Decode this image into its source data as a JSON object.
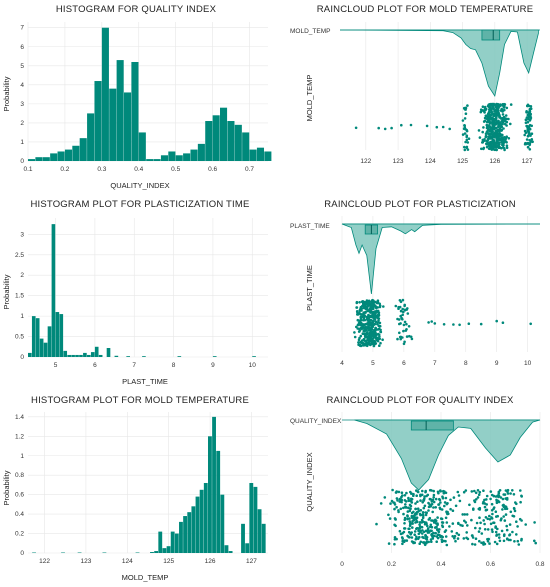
{
  "chart_data": [
    {
      "type": "bar",
      "title": "HISTOGRAM FOR QUALITY INDEX",
      "xlabel": "QUALITY_INDEX",
      "ylabel": "Probability",
      "xlim": [
        0.1,
        0.75
      ],
      "ylim": [
        0,
        7.3
      ],
      "xticks": [
        "0.1",
        "0.2",
        "0.3",
        "0.4",
        "0.5",
        "0.6",
        "0.7"
      ],
      "yticks": [
        "0",
        "1",
        "2",
        "3",
        "4",
        "5",
        "6",
        "7"
      ],
      "bins": [
        [
          0.1,
          0.12,
          0.1
        ],
        [
          0.12,
          0.14,
          0.2
        ],
        [
          0.14,
          0.16,
          0.2
        ],
        [
          0.16,
          0.18,
          0.4
        ],
        [
          0.18,
          0.2,
          0.5
        ],
        [
          0.2,
          0.22,
          0.6
        ],
        [
          0.22,
          0.24,
          0.8
        ],
        [
          0.24,
          0.26,
          1.2
        ],
        [
          0.26,
          0.28,
          2.5
        ],
        [
          0.28,
          0.3,
          4.2
        ],
        [
          0.3,
          0.32,
          7.0
        ],
        [
          0.32,
          0.34,
          3.8
        ],
        [
          0.34,
          0.36,
          5.3
        ],
        [
          0.36,
          0.38,
          3.6
        ],
        [
          0.38,
          0.4,
          5.2
        ],
        [
          0.4,
          0.42,
          1.5
        ],
        [
          0.42,
          0.44,
          0.1
        ],
        [
          0.44,
          0.46,
          0.1
        ],
        [
          0.46,
          0.48,
          0.3
        ],
        [
          0.48,
          0.5,
          0.5
        ],
        [
          0.5,
          0.52,
          0.3
        ],
        [
          0.52,
          0.54,
          0.4
        ],
        [
          0.54,
          0.56,
          0.6
        ],
        [
          0.56,
          0.58,
          0.9
        ],
        [
          0.58,
          0.6,
          2.1
        ],
        [
          0.6,
          0.62,
          2.4
        ],
        [
          0.62,
          0.64,
          2.8
        ],
        [
          0.64,
          0.66,
          2.1
        ],
        [
          0.66,
          0.68,
          1.9
        ],
        [
          0.68,
          0.7,
          1.5
        ],
        [
          0.7,
          0.72,
          0.6
        ],
        [
          0.72,
          0.74,
          0.7
        ],
        [
          0.74,
          0.76,
          0.5
        ]
      ]
    },
    {
      "type": "raincloud",
      "title": "RAINCLOUD PLOT FOR MOLD TEMPERATURE",
      "ylabel": "MOLD_TEMP",
      "category": "MOLD_TEMP",
      "xlim": [
        121.2,
        127.4
      ],
      "xticks": [
        "122",
        "123",
        "124",
        "125",
        "126",
        "127"
      ],
      "box": {
        "q1": 125.6,
        "median": 125.95,
        "q3": 126.15
      },
      "density": [
        [
          121.2,
          0
        ],
        [
          124.4,
          0.01
        ],
        [
          124.7,
          0.04
        ],
        [
          124.95,
          0.12
        ],
        [
          125.1,
          0.22
        ],
        [
          125.25,
          0.28
        ],
        [
          125.4,
          0.3
        ],
        [
          125.6,
          0.5
        ],
        [
          125.8,
          0.85
        ],
        [
          126.0,
          1.0
        ],
        [
          126.15,
          0.65
        ],
        [
          126.3,
          0.22
        ],
        [
          126.5,
          0.02
        ],
        [
          126.7,
          0.03
        ],
        [
          126.9,
          0.5
        ],
        [
          127.05,
          0.65
        ],
        [
          127.2,
          0.35
        ],
        [
          127.35,
          0.05
        ]
      ],
      "points_clusters": [
        {
          "center": 126.0,
          "spread": 0.55,
          "n": 430
        },
        {
          "center": 127.05,
          "spread": 0.18,
          "n": 70
        },
        {
          "center": 125.1,
          "spread": 0.15,
          "n": 30
        }
      ],
      "points_outliers": [
        121.7,
        122.4,
        122.6,
        122.8,
        123.1,
        123.4,
        123.9,
        124.2,
        124.4,
        124.6
      ]
    },
    {
      "type": "bar",
      "title": "HISTOGRAM PLOT FOR PLASTICIZATION TIME",
      "xlabel": "PLAST_TIME",
      "ylabel": "Probability",
      "xlim": [
        4.3,
        10.4
      ],
      "ylim": [
        0,
        3.4
      ],
      "xticks": [
        "5",
        "6",
        "7",
        "8",
        "9",
        "10"
      ],
      "yticks": [
        "0",
        "0.5",
        "1",
        "1.5",
        "2",
        "2.5",
        "3"
      ],
      "bins": [
        [
          4.3,
          4.4,
          0.1
        ],
        [
          4.4,
          4.5,
          1.0
        ],
        [
          4.5,
          4.6,
          0.95
        ],
        [
          4.6,
          4.7,
          0.45
        ],
        [
          4.7,
          4.8,
          0.35
        ],
        [
          4.8,
          4.9,
          0.75
        ],
        [
          4.9,
          5.0,
          3.25
        ],
        [
          5.0,
          5.1,
          1.1
        ],
        [
          5.1,
          5.2,
          1.05
        ],
        [
          5.2,
          5.3,
          0.15
        ],
        [
          5.3,
          5.4,
          0.05
        ],
        [
          5.4,
          5.5,
          0.05
        ],
        [
          5.5,
          5.6,
          0.05
        ],
        [
          5.6,
          5.7,
          0.05
        ],
        [
          5.7,
          5.8,
          0.1
        ],
        [
          5.8,
          5.9,
          0.05
        ],
        [
          5.9,
          6.0,
          0.12
        ],
        [
          6.0,
          6.1,
          0.25
        ],
        [
          6.1,
          6.2,
          0.05
        ],
        [
          6.3,
          6.4,
          0.22
        ],
        [
          6.5,
          6.6,
          0.03
        ],
        [
          6.8,
          6.9,
          0.02
        ],
        [
          7.2,
          7.3,
          0.02
        ],
        [
          8.1,
          8.2,
          0.02
        ],
        [
          9.0,
          9.1,
          0.02
        ],
        [
          10.0,
          10.1,
          0.02
        ]
      ]
    },
    {
      "type": "raincloud",
      "title": "RAINCLOUD PLOT FOR PLASTICIZATION",
      "ylabel": "PLAST_TIME",
      "category": "PLAST_TIME",
      "xlim": [
        4.0,
        10.4
      ],
      "xticks": [
        "4",
        "5",
        "6",
        "7",
        "8",
        "9",
        "10"
      ],
      "box": {
        "q1": 4.75,
        "median": 4.95,
        "q3": 5.15
      },
      "density": [
        [
          4.0,
          0
        ],
        [
          4.3,
          0.05
        ],
        [
          4.45,
          0.3
        ],
        [
          4.55,
          0.42
        ],
        [
          4.65,
          0.3
        ],
        [
          4.8,
          0.45
        ],
        [
          4.95,
          1.0
        ],
        [
          5.1,
          0.35
        ],
        [
          5.3,
          0.05
        ],
        [
          5.6,
          0.04
        ],
        [
          5.9,
          0.1
        ],
        [
          6.05,
          0.14
        ],
        [
          6.25,
          0.08
        ],
        [
          6.35,
          0.11
        ],
        [
          6.6,
          0.02
        ],
        [
          7.2,
          0.005
        ],
        [
          10.4,
          0
        ]
      ],
      "points_clusters": [
        {
          "center": 4.95,
          "spread": 0.45,
          "n": 330
        },
        {
          "center": 4.6,
          "spread": 0.25,
          "n": 80
        },
        {
          "center": 6.0,
          "spread": 0.35,
          "n": 45
        }
      ],
      "points_outliers": [
        6.8,
        6.9,
        7.0,
        7.3,
        7.6,
        7.8,
        8.1,
        8.5,
        9.0,
        9.2,
        10.1
      ]
    },
    {
      "type": "bar",
      "title": "HISTOGRAM PLOT FOR MOLD TEMPERATURE",
      "xlabel": "MOLD_TEMP",
      "ylabel": "Probability",
      "xlim": [
        121.6,
        127.4
      ],
      "ylim": [
        0,
        1.45
      ],
      "xticks": [
        "122",
        "123",
        "124",
        "125",
        "126",
        "127"
      ],
      "yticks": [
        "0",
        "0.2",
        "0.4",
        "0.6",
        "0.8",
        "1",
        "1.2",
        "1.4"
      ],
      "bins": [
        [
          121.7,
          121.8,
          0.005
        ],
        [
          122.4,
          122.5,
          0.005
        ],
        [
          122.8,
          122.9,
          0.005
        ],
        [
          123.4,
          123.5,
          0.005
        ],
        [
          124.2,
          124.3,
          0.005
        ],
        [
          124.55,
          124.65,
          0.01
        ],
        [
          124.65,
          124.75,
          0.02
        ],
        [
          124.75,
          124.85,
          0.22
        ],
        [
          124.85,
          124.95,
          0.05
        ],
        [
          124.95,
          125.05,
          0.07
        ],
        [
          125.05,
          125.15,
          0.22
        ],
        [
          125.15,
          125.25,
          0.2
        ],
        [
          125.25,
          125.35,
          0.32
        ],
        [
          125.35,
          125.45,
          0.38
        ],
        [
          125.45,
          125.55,
          0.42
        ],
        [
          125.55,
          125.65,
          0.48
        ],
        [
          125.65,
          125.75,
          0.58
        ],
        [
          125.75,
          125.85,
          0.65
        ],
        [
          125.85,
          125.95,
          0.72
        ],
        [
          125.95,
          126.05,
          1.2
        ],
        [
          126.05,
          126.15,
          1.4
        ],
        [
          126.15,
          126.25,
          1.05
        ],
        [
          126.25,
          126.35,
          0.6
        ],
        [
          126.35,
          126.45,
          0.08
        ],
        [
          126.45,
          126.55,
          0.02
        ],
        [
          126.75,
          126.85,
          0.3
        ],
        [
          126.85,
          126.95,
          0.1
        ],
        [
          126.95,
          127.05,
          0.72
        ],
        [
          127.05,
          127.15,
          0.68
        ],
        [
          127.15,
          127.25,
          0.45
        ],
        [
          127.25,
          127.35,
          0.3
        ]
      ]
    },
    {
      "type": "raincloud",
      "title": "RAINCLOUD PLOT FOR QUALITY INDEX",
      "ylabel": "QUALITY_INDEX",
      "category": "QUALITY_INDEX",
      "xlim": [
        0,
        0.8
      ],
      "xticks": [
        "0",
        "0.2",
        "0.4",
        "0.6",
        "0.8"
      ],
      "box": {
        "q1": 0.28,
        "median": 0.34,
        "q3": 0.45
      },
      "density": [
        [
          0.05,
          0
        ],
        [
          0.1,
          0.05
        ],
        [
          0.18,
          0.2
        ],
        [
          0.24,
          0.55
        ],
        [
          0.28,
          0.9
        ],
        [
          0.31,
          1.0
        ],
        [
          0.35,
          0.85
        ],
        [
          0.39,
          0.5
        ],
        [
          0.43,
          0.22
        ],
        [
          0.47,
          0.1
        ],
        [
          0.52,
          0.12
        ],
        [
          0.58,
          0.4
        ],
        [
          0.63,
          0.6
        ],
        [
          0.68,
          0.5
        ],
        [
          0.72,
          0.25
        ],
        [
          0.77,
          0.03
        ],
        [
          0.8,
          0
        ]
      ],
      "points_clusters": [
        {
          "center": 0.33,
          "spread": 0.22,
          "n": 360
        },
        {
          "center": 0.62,
          "spread": 0.2,
          "n": 180
        }
      ],
      "points_outliers": []
    }
  ],
  "style": {
    "bar_color": "#00897b",
    "point_color": "#00897b",
    "violin_fill": "#7fc7bd",
    "violin_stroke": "#00897b"
  }
}
